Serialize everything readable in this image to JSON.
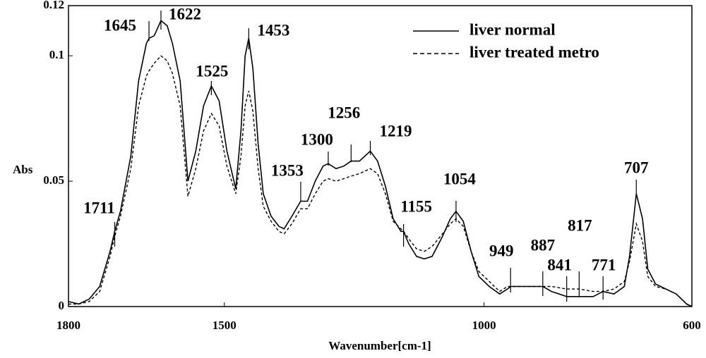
{
  "chart_data": {
    "type": "line",
    "x_label": "Wavenumber[cm-1]",
    "y_label": "Abs",
    "xlim": [
      1800,
      600
    ],
    "ylim": [
      0,
      0.12
    ],
    "xticks": [
      1800,
      1500,
      1000,
      600
    ],
    "yticks": [
      0,
      0.05,
      0.1,
      0.12
    ],
    "legend": "upper right",
    "x": [
      1800,
      1780,
      1760,
      1740,
      1720,
      1711,
      1700,
      1680,
      1665,
      1650,
      1645,
      1635,
      1622,
      1610,
      1600,
      1585,
      1570,
      1555,
      1540,
      1525,
      1510,
      1495,
      1478,
      1468,
      1460,
      1453,
      1445,
      1435,
      1425,
      1410,
      1395,
      1385,
      1370,
      1353,
      1340,
      1325,
      1310,
      1300,
      1285,
      1270,
      1256,
      1240,
      1219,
      1205,
      1190,
      1175,
      1160,
      1155,
      1145,
      1130,
      1115,
      1100,
      1080,
      1065,
      1054,
      1040,
      1025,
      1010,
      990,
      970,
      955,
      949,
      920,
      887,
      870,
      841,
      817,
      790,
      771,
      750,
      730,
      720,
      707,
      695,
      685,
      670,
      650,
      630,
      610,
      600
    ],
    "series": [
      {
        "name": "liver normal",
        "color": "#000000",
        "dashed": false,
        "values": [
          0.002,
          0.001,
          0.003,
          0.008,
          0.022,
          0.03,
          0.038,
          0.06,
          0.09,
          0.105,
          0.107,
          0.108,
          0.114,
          0.112,
          0.105,
          0.09,
          0.05,
          0.062,
          0.08,
          0.088,
          0.082,
          0.062,
          0.047,
          0.07,
          0.1,
          0.107,
          0.095,
          0.065,
          0.045,
          0.036,
          0.032,
          0.031,
          0.036,
          0.042,
          0.042,
          0.05,
          0.056,
          0.057,
          0.055,
          0.056,
          0.058,
          0.058,
          0.062,
          0.058,
          0.048,
          0.035,
          0.03,
          0.03,
          0.025,
          0.02,
          0.019,
          0.02,
          0.028,
          0.035,
          0.038,
          0.034,
          0.022,
          0.012,
          0.008,
          0.005,
          0.007,
          0.008,
          0.008,
          0.008,
          0.006,
          0.004,
          0.004,
          0.004,
          0.006,
          0.005,
          0.008,
          0.02,
          0.045,
          0.035,
          0.015,
          0.009,
          0.007,
          0.005,
          0.001,
          0.0
        ]
      },
      {
        "name": "liver treated metro",
        "color": "#000000",
        "dashed": true,
        "values": [
          0.001,
          0.001,
          0.002,
          0.006,
          0.02,
          0.028,
          0.036,
          0.055,
          0.08,
          0.092,
          0.094,
          0.097,
          0.1,
          0.098,
          0.093,
          0.08,
          0.044,
          0.055,
          0.07,
          0.077,
          0.072,
          0.056,
          0.045,
          0.06,
          0.08,
          0.086,
          0.078,
          0.055,
          0.04,
          0.034,
          0.03,
          0.029,
          0.033,
          0.039,
          0.039,
          0.045,
          0.05,
          0.051,
          0.05,
          0.051,
          0.052,
          0.053,
          0.055,
          0.053,
          0.045,
          0.034,
          0.031,
          0.03,
          0.027,
          0.023,
          0.022,
          0.024,
          0.029,
          0.033,
          0.035,
          0.032,
          0.022,
          0.014,
          0.01,
          0.006,
          0.008,
          0.008,
          0.008,
          0.008,
          0.008,
          0.007,
          0.007,
          0.006,
          0.006,
          0.007,
          0.01,
          0.018,
          0.033,
          0.026,
          0.012,
          0.008,
          0.007,
          0.005,
          0.001,
          0.0
        ]
      }
    ],
    "peak_labels": [
      1711,
      1645,
      1622,
      1525,
      1453,
      1353,
      1300,
      1256,
      1219,
      1155,
      1054,
      949,
      887,
      841,
      817,
      771,
      707
    ]
  }
}
